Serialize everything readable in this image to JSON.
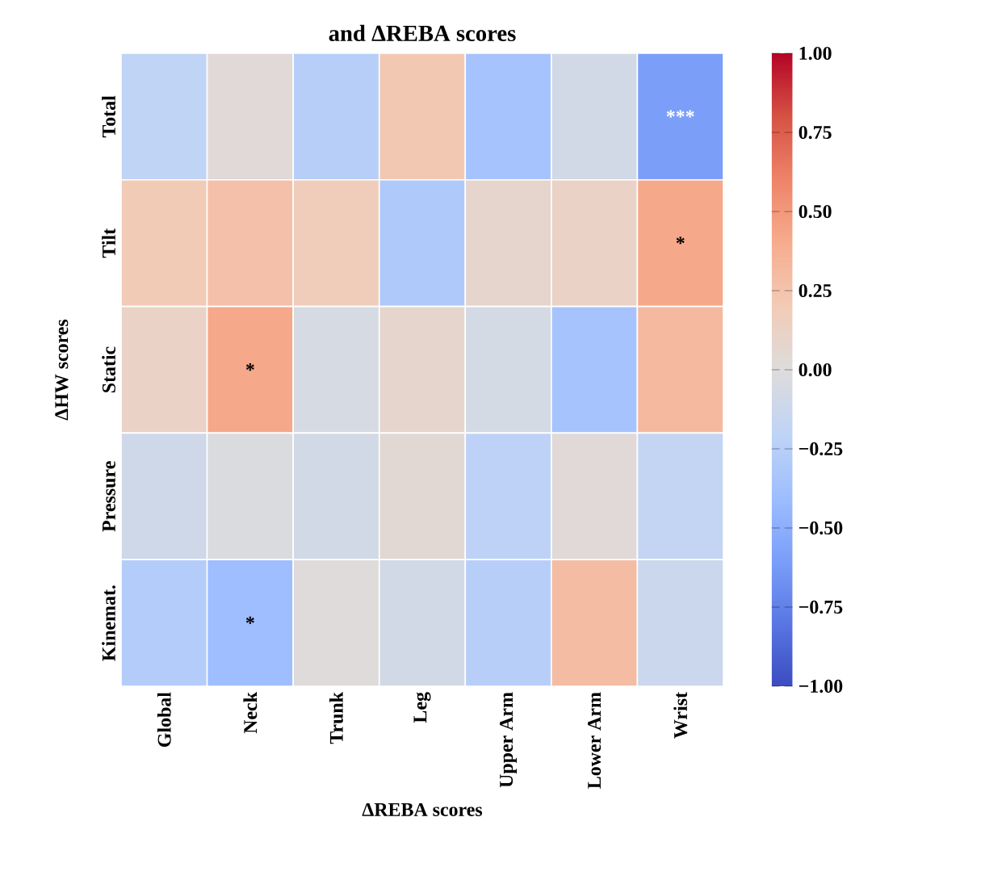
{
  "chart_data": {
    "type": "heatmap",
    "title": "and ΔREBA scores",
    "xlabel": "ΔREBA scores",
    "ylabel": "ΔHW scores",
    "categories": [
      "Global",
      "Neck",
      "Trunk",
      "Leg",
      "Upper Arm",
      "Lower Arm",
      "Wrist"
    ],
    "y_categories": [
      "Total",
      "Tilt",
      "Static",
      "Pressure",
      "Kinemat."
    ],
    "cells": [
      [
        -0.2,
        0.03,
        -0.25,
        0.22,
        -0.35,
        -0.08,
        -0.6
      ],
      [
        0.2,
        0.27,
        0.18,
        -0.3,
        0.08,
        0.12,
        0.42
      ],
      [
        0.12,
        0.42,
        -0.05,
        0.08,
        -0.06,
        -0.35,
        0.32
      ],
      [
        -0.1,
        -0.02,
        -0.08,
        0.05,
        -0.22,
        0.03,
        -0.18
      ],
      [
        -0.27,
        -0.4,
        0.01,
        -0.08,
        -0.25,
        0.3,
        -0.13
      ]
    ],
    "cell_labels": [
      [
        null,
        null,
        null,
        null,
        null,
        null,
        "***"
      ],
      [
        null,
        null,
        null,
        null,
        null,
        null,
        "*"
      ],
      [
        null,
        "*",
        null,
        null,
        null,
        null,
        null
      ],
      [
        null,
        null,
        null,
        null,
        null,
        null,
        null
      ],
      [
        null,
        "*",
        null,
        null,
        null,
        null,
        null
      ]
    ],
    "clim": [
      -1,
      1
    ],
    "cticks": [
      {
        "value": -1,
        "label": "−1.00"
      },
      {
        "value": -0.75,
        "label": "−0.75"
      },
      {
        "value": -0.5,
        "label": "−0.50"
      },
      {
        "value": -0.25,
        "label": "−0.25"
      },
      {
        "value": 0,
        "label": "0.00"
      },
      {
        "value": 0.25,
        "label": "0.25"
      },
      {
        "value": 0.5,
        "label": "0.50"
      },
      {
        "value": 0.75,
        "label": "0.75"
      },
      {
        "value": 1,
        "label": "1.00"
      }
    ]
  }
}
